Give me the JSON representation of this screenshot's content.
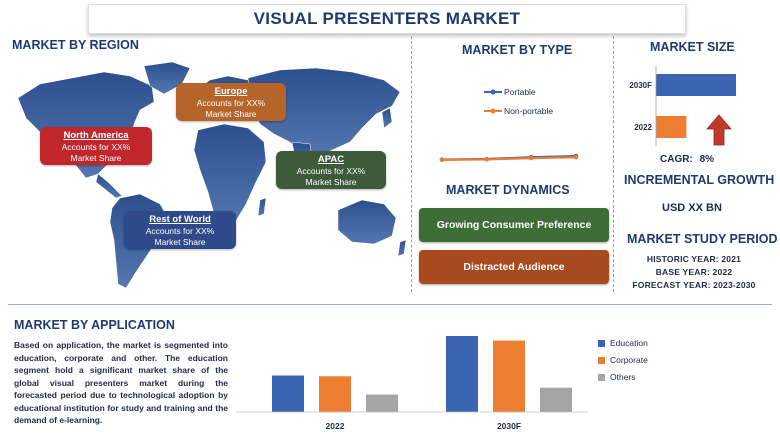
{
  "title": "VISUAL PRESENTERS MARKET",
  "region": {
    "heading": "MARKET BY REGION",
    "callouts": [
      {
        "name": "North America",
        "line1": "Accounts for XX%",
        "line2": "Market Share",
        "color": "#c0272d"
      },
      {
        "name": "Europe",
        "line1": "Accounts for XX%",
        "line2": "Market Share",
        "color": "#b5642a"
      },
      {
        "name": "APAC",
        "line1": "Accounts for XX%",
        "line2": "Market Share",
        "color": "#3d5b3a"
      },
      {
        "name": "Rest of World",
        "line1": "Accounts for XX%",
        "line2": "Market Share",
        "color": "#2f4a8a"
      }
    ]
  },
  "type": {
    "heading": "MARKET BY TYPE",
    "legend": [
      {
        "label": "Portable",
        "color": "#3b64b3"
      },
      {
        "label": "Non-portable",
        "color": "#ed7d31"
      }
    ]
  },
  "dynamics": {
    "heading": "MARKET DYNAMICS",
    "items": [
      {
        "label": "Growing Consumer Preference",
        "color": "#3c6e36"
      },
      {
        "label": "Distracted Audience",
        "color": "#a84a1e"
      }
    ]
  },
  "size": {
    "heading": "MARKET SIZE",
    "cagr_label": "CAGR:",
    "cagr_value": "8%",
    "arrow_color": "#c0392b"
  },
  "growth": {
    "heading": "INCREMENTAL GROWTH",
    "value": "USD XX BN"
  },
  "study": {
    "heading": "MARKET STUDY PERIOD",
    "historic": "HISTORIC YEAR: 2021",
    "base": "BASE YEAR: 2022",
    "forecast": "FORECAST YEAR: 2023-2030"
  },
  "application": {
    "heading": "MARKET BY APPLICATION",
    "text": "Based on application, the market is segmented into education, corporate and other. The education segment hold a significant market share of the global visual presenters market during the forecasted period due to technological adoption by educational institution for study and training and the demand of e-learning."
  },
  "chart_data": [
    {
      "type": "line",
      "x": [
        1,
        2,
        3,
        4
      ],
      "series": [
        {
          "name": "Portable",
          "values": [
            3.0,
            3.4,
            4.6,
            5.4
          ],
          "color": "#3b64b3"
        },
        {
          "name": "Non-portable",
          "values": [
            2.8,
            3.1,
            4.0,
            4.6
          ],
          "color": "#ed7d31"
        }
      ],
      "ylim": [
        0,
        30
      ],
      "legend": "top-right",
      "grid": false
    },
    {
      "type": "bar",
      "orientation": "horizontal",
      "categories": [
        "2030F",
        "2022"
      ],
      "values": [
        100,
        38
      ],
      "colors": [
        "#3b64b3",
        "#ed7d31"
      ],
      "xlim": [
        0,
        100
      ],
      "grid": false
    },
    {
      "type": "bar",
      "categories": [
        "2022",
        "2030F"
      ],
      "series": [
        {
          "name": "Education",
          "values": [
            48,
            100
          ],
          "color": "#3b64b3"
        },
        {
          "name": "Corporate",
          "values": [
            47,
            94
          ],
          "color": "#ed7d31"
        },
        {
          "name": "Others",
          "values": [
            23,
            32
          ],
          "color": "#a5a5a5"
        }
      ],
      "ylim": [
        0,
        100
      ],
      "legend": "right",
      "grid": false
    }
  ]
}
